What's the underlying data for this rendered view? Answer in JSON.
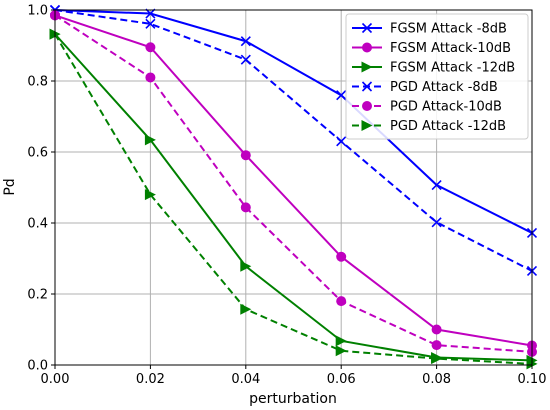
{
  "chart_data": {
    "type": "line",
    "xlabel": "perturbation",
    "ylabel": "Pd",
    "xlim": [
      0.0,
      0.1
    ],
    "ylim": [
      0.0,
      1.0
    ],
    "x_ticks": [
      0.0,
      0.02,
      0.04,
      0.06,
      0.08,
      0.1
    ],
    "x_tick_labels": [
      "0.00",
      "0.02",
      "0.04",
      "0.06",
      "0.08",
      "0.10"
    ],
    "y_ticks": [
      0.0,
      0.2,
      0.4,
      0.6,
      0.8,
      1.0
    ],
    "y_tick_labels": [
      "0.0",
      "0.2",
      "0.4",
      "0.6",
      "0.8",
      "1.0"
    ],
    "grid": true,
    "legend_position": "top-right",
    "x": [
      0.0,
      0.02,
      0.04,
      0.06,
      0.08,
      0.1
    ],
    "series": [
      {
        "name": "FGSM Attack -8dB",
        "color": "#0000ff",
        "line": "solid",
        "marker": "x",
        "values": [
          1.0,
          0.99,
          0.912,
          0.76,
          0.507,
          0.372
        ]
      },
      {
        "name": "FGSM Attack-10dB",
        "color": "#bf00bf",
        "line": "solid",
        "marker": "circle",
        "values": [
          0.985,
          0.895,
          0.591,
          0.305,
          0.1,
          0.055
        ]
      },
      {
        "name": "FGSM Attack -12dB",
        "color": "#008000",
        "line": "solid",
        "marker": "triangle-right",
        "values": [
          0.932,
          0.634,
          0.278,
          0.068,
          0.021,
          0.013
        ]
      },
      {
        "name": "PGD Attack -8dB",
        "color": "#0000ff",
        "line": "dashed",
        "marker": "x",
        "values": [
          1.0,
          0.961,
          0.86,
          0.63,
          0.402,
          0.265
        ]
      },
      {
        "name": "PGD Attack-10dB",
        "color": "#bf00bf",
        "line": "dashed",
        "marker": "circle",
        "values": [
          0.985,
          0.81,
          0.444,
          0.18,
          0.056,
          0.037
        ]
      },
      {
        "name": "PGD Attack -12dB",
        "color": "#008000",
        "line": "dashed",
        "marker": "triangle-right",
        "values": [
          0.932,
          0.48,
          0.157,
          0.04,
          0.018,
          0.003
        ]
      }
    ]
  }
}
